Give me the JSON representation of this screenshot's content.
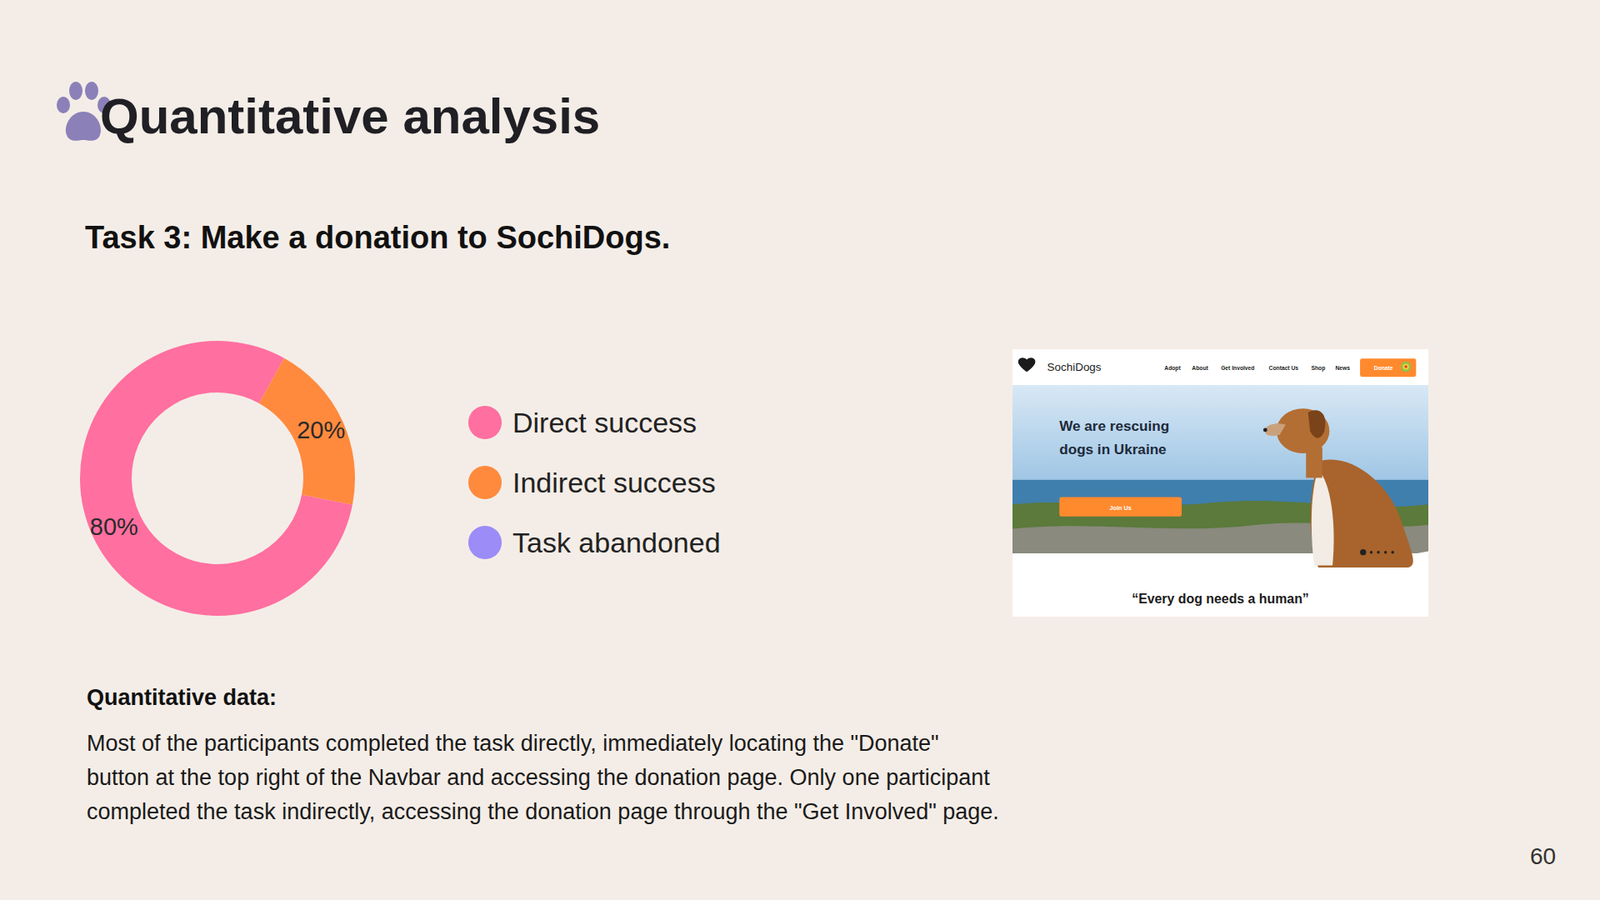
{
  "header": {
    "title": "Quantitative analysis",
    "subtitle": "Task 3: Make a donation to SochiDogs."
  },
  "chart_data": {
    "type": "donut",
    "categories": [
      "Direct success",
      "Indirect success",
      "Task abandoned"
    ],
    "values": [
      80,
      20,
      0
    ],
    "value_labels": [
      "80%",
      "20%",
      null
    ],
    "colors": [
      "#ff6fa0",
      "#ff8a3d",
      "#9b8cf7"
    ],
    "legend": "right",
    "data_labels": true
  },
  "screenshot": {
    "logo": "SochiDogs",
    "nav": [
      "Adopt",
      "About",
      "Get Involved",
      "Contact Us",
      "Shop",
      "News"
    ],
    "nav_button": "Donate",
    "hero": [
      "We are rescuing",
      "dogs in Ukraine"
    ],
    "button": "Join Us",
    "tagline": "“Every dog needs a human”"
  },
  "notes": {
    "heading": "Quantitative data:",
    "lines": [
      "Most of the participants completed the task directly, immediately locating the \"Donate\"",
      "button at the top right of the Navbar and accessing the donation page. Only one participant",
      "completed the task indirectly, accessing the donation page through the \"Get Involved\" page."
    ]
  },
  "page_number": 60
}
